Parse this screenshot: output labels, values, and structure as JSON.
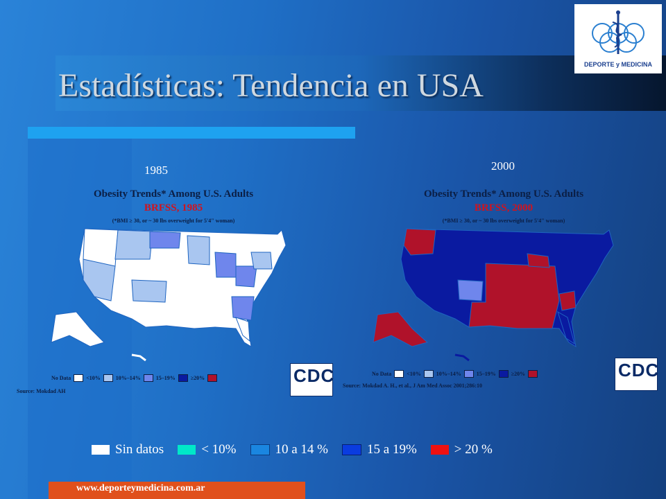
{
  "slide": {
    "title": "Estadísticas: Tendencia en USA",
    "footer": "www.deporteymedicina.com.ar"
  },
  "logo": {
    "text": "DEPORTE y MEDICINA"
  },
  "maps": [
    {
      "year_label": "1985",
      "title": "Obesity Trends* Among U.S. Adults",
      "subtitle": "BRFSS, 1985",
      "note": "(*BMI ≥ 30, or ~ 30 lbs overweight for 5'4\" woman)",
      "legend": [
        "No Data",
        "<10%",
        "10%–14%",
        "15–19%",
        "≥20%"
      ],
      "source": "Source: Mokdad AH",
      "cdc": "CDC"
    },
    {
      "year_label": "2000",
      "title": "Obesity Trends* Among U.S. Adults",
      "subtitle": "BRFSS, 2000",
      "note": "(*BMI ≥ 30, or ~ 30 lbs overweight for 5'4\" woman)",
      "legend": [
        "No Data",
        "<10%",
        "10%–14%",
        "15–19%",
        "≥20%"
      ],
      "source": "Source: Mokdad A. H., et al., J Am Med Assoc 2001;286:10",
      "cdc": "CDC"
    }
  ],
  "legend": {
    "items": [
      {
        "label": "Sin datos",
        "color": "#ffffff"
      },
      {
        "label": "< 10%",
        "color": "#00e8c8"
      },
      {
        "label": "10 a 14 %",
        "color": "#1a86e0"
      },
      {
        "label": "15 a 19%",
        "color": "#0a3ce0"
      },
      {
        "label": "> 20 %",
        "color": "#ee1111"
      }
    ]
  },
  "colors": {
    "map_bg": "#1e64c0",
    "no_data": "#ffffff",
    "lt10": "#a9c6f0",
    "r10_14": "#6f86ec",
    "r15_19": "#0a1aa0",
    "gt20": "#b0122a"
  }
}
